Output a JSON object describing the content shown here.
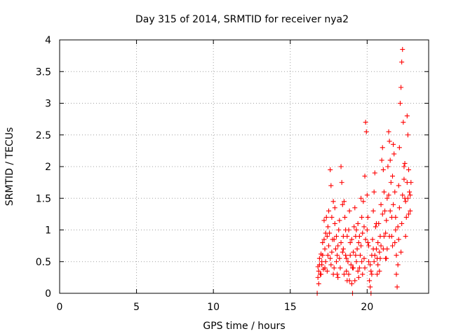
{
  "chart_data": {
    "type": "scatter",
    "title": "Day 315 of 2014, SRMTID for receiver nya2",
    "xlabel": "GPS time / hours",
    "ylabel": "SRMTID / TECUs",
    "xlim": [
      0,
      24
    ],
    "ylim": [
      0,
      4
    ],
    "xticks": [
      0,
      5,
      10,
      15,
      20
    ],
    "yticks": [
      0,
      0.5,
      1,
      1.5,
      2,
      2.5,
      3,
      3.5,
      4
    ],
    "ytick_labels": [
      "0",
      "0.5",
      "1",
      "1.5",
      "2",
      "2.5",
      "3",
      "3.5",
      "4"
    ],
    "grid": true,
    "marker": "+",
    "color": "#ff0000",
    "series": [
      {
        "name": "SRMTID",
        "points": [
          [
            16.75,
            0.0
          ],
          [
            16.8,
            0.42
          ],
          [
            16.85,
            0.35
          ],
          [
            16.9,
            0.55
          ],
          [
            16.95,
            0.3
          ],
          [
            17.0,
            0.62
          ],
          [
            17.05,
            0.45
          ],
          [
            17.1,
            0.8
          ],
          [
            17.15,
            0.38
          ],
          [
            17.2,
            1.15
          ],
          [
            17.25,
            0.7
          ],
          [
            17.3,
            0.5
          ],
          [
            17.35,
            1.2
          ],
          [
            17.4,
            0.9
          ],
          [
            17.45,
            0.6
          ],
          [
            17.5,
            1.3
          ],
          [
            17.55,
            0.95
          ],
          [
            17.6,
            1.95
          ],
          [
            17.65,
            1.7
          ],
          [
            17.7,
            1.2
          ],
          [
            17.75,
            0.85
          ],
          [
            17.8,
            1.45
          ],
          [
            17.85,
            0.4
          ],
          [
            17.9,
            1.1
          ],
          [
            17.95,
            0.7
          ],
          [
            18.0,
            0.5
          ],
          [
            18.05,
            0.3
          ],
          [
            18.1,
            0.75
          ],
          [
            18.15,
            1.0
          ],
          [
            18.2,
            0.55
          ],
          [
            18.3,
            2.0
          ],
          [
            18.35,
            1.75
          ],
          [
            18.4,
            1.4
          ],
          [
            18.45,
            0.9
          ],
          [
            18.5,
            1.45
          ],
          [
            18.55,
            1.2
          ],
          [
            18.6,
            0.6
          ],
          [
            18.65,
            0.35
          ],
          [
            18.7,
            0.2
          ],
          [
            18.75,
            0.5
          ],
          [
            18.8,
            1.0
          ],
          [
            18.85,
            1.3
          ],
          [
            18.9,
            0.8
          ],
          [
            18.95,
            0.45
          ],
          [
            19.0,
            0.15
          ],
          [
            19.05,
            0.0
          ],
          [
            19.1,
            0.65
          ],
          [
            19.15,
            1.05
          ],
          [
            19.2,
            1.35
          ],
          [
            19.25,
            0.9
          ],
          [
            19.3,
            0.5
          ],
          [
            19.35,
            0.7
          ],
          [
            19.4,
            1.1
          ],
          [
            19.45,
            0.8
          ],
          [
            19.5,
            0.4
          ],
          [
            19.55,
            0.6
          ],
          [
            19.6,
            1.5
          ],
          [
            19.65,
            1.2
          ],
          [
            19.7,
            0.95
          ],
          [
            19.75,
            1.45
          ],
          [
            19.8,
            1.05
          ],
          [
            19.85,
            1.85
          ],
          [
            19.9,
            2.7
          ],
          [
            19.95,
            2.55
          ],
          [
            20.0,
            1.55
          ],
          [
            20.05,
            1.2
          ],
          [
            20.1,
            0.5
          ],
          [
            20.15,
            0.2
          ],
          [
            20.2,
            0.1
          ],
          [
            20.25,
            0.0
          ],
          [
            20.3,
            0.6
          ],
          [
            20.35,
            0.85
          ],
          [
            20.4,
            1.3
          ],
          [
            20.45,
            1.6
          ],
          [
            20.5,
            1.9
          ],
          [
            20.55,
            1.05
          ],
          [
            20.6,
            0.7
          ],
          [
            20.65,
            0.55
          ],
          [
            20.7,
            0.8
          ],
          [
            20.75,
            1.1
          ],
          [
            20.8,
            0.65
          ],
          [
            20.85,
            0.9
          ],
          [
            20.9,
            1.4
          ],
          [
            20.95,
            2.1
          ],
          [
            21.0,
            2.3
          ],
          [
            21.05,
            1.95
          ],
          [
            21.1,
            1.6
          ],
          [
            21.15,
            1.3
          ],
          [
            21.2,
            0.95
          ],
          [
            21.25,
            1.15
          ],
          [
            21.3,
            1.5
          ],
          [
            21.35,
            2.0
          ],
          [
            21.4,
            2.55
          ],
          [
            21.45,
            2.4
          ],
          [
            21.5,
            2.1
          ],
          [
            21.55,
            1.75
          ],
          [
            21.6,
            1.2
          ],
          [
            21.65,
            1.85
          ],
          [
            21.7,
            2.35
          ],
          [
            21.75,
            2.2
          ],
          [
            21.8,
            1.6
          ],
          [
            21.85,
            1.0
          ],
          [
            21.9,
            0.3
          ],
          [
            21.95,
            0.1
          ],
          [
            22.0,
            0.45
          ],
          [
            22.05,
            1.7
          ],
          [
            22.1,
            2.3
          ],
          [
            22.15,
            3.0
          ],
          [
            22.2,
            3.25
          ],
          [
            22.25,
            3.65
          ],
          [
            22.3,
            3.85
          ],
          [
            22.35,
            2.7
          ],
          [
            22.4,
            2.0
          ],
          [
            22.45,
            1.5
          ],
          [
            22.5,
            0.9
          ],
          [
            22.55,
            1.2
          ],
          [
            22.6,
            2.8
          ],
          [
            22.65,
            2.5
          ],
          [
            22.7,
            1.95
          ],
          [
            22.75,
            1.6
          ],
          [
            22.8,
            1.3
          ],
          [
            16.8,
            0.25
          ],
          [
            16.9,
            0.45
          ],
          [
            17.0,
            0.3
          ],
          [
            17.1,
            0.6
          ],
          [
            17.2,
            0.85
          ],
          [
            17.3,
            0.95
          ],
          [
            17.4,
            0.35
          ],
          [
            17.5,
            0.75
          ],
          [
            17.6,
            0.55
          ],
          [
            17.7,
            0.65
          ],
          [
            17.8,
            0.3
          ],
          [
            17.9,
            1.35
          ],
          [
            18.0,
            0.9
          ],
          [
            18.1,
            0.25
          ],
          [
            18.2,
            1.15
          ],
          [
            18.3,
            0.8
          ],
          [
            18.4,
            0.65
          ],
          [
            18.5,
            0.3
          ],
          [
            18.6,
            1.0
          ],
          [
            18.7,
            0.9
          ],
          [
            18.8,
            0.3
          ],
          [
            18.9,
            0.6
          ],
          [
            19.0,
            0.85
          ],
          [
            19.1,
            0.4
          ],
          [
            19.2,
            0.2
          ],
          [
            19.3,
            1.0
          ],
          [
            19.4,
            0.35
          ],
          [
            19.5,
            0.9
          ],
          [
            19.6,
            0.75
          ],
          [
            19.7,
            0.3
          ],
          [
            19.8,
            0.55
          ],
          [
            19.9,
            0.85
          ],
          [
            20.0,
            1.0
          ],
          [
            20.1,
            0.75
          ],
          [
            20.2,
            0.45
          ],
          [
            20.3,
            0.3
          ],
          [
            20.4,
            0.7
          ],
          [
            20.5,
            0.6
          ],
          [
            20.6,
            1.1
          ],
          [
            20.7,
            0.45
          ],
          [
            20.8,
            0.35
          ],
          [
            20.9,
            0.75
          ],
          [
            21.0,
            1.25
          ],
          [
            21.1,
            0.9
          ],
          [
            21.2,
            0.55
          ],
          [
            21.3,
            0.7
          ],
          [
            21.4,
            1.55
          ],
          [
            21.5,
            1.3
          ],
          [
            21.6,
            0.9
          ],
          [
            21.7,
            1.4
          ],
          [
            21.8,
            0.8
          ],
          [
            21.9,
            0.6
          ],
          [
            22.0,
            1.05
          ],
          [
            22.1,
            1.35
          ],
          [
            22.2,
            0.65
          ],
          [
            22.3,
            1.55
          ],
          [
            22.4,
            1.8
          ],
          [
            22.5,
            1.45
          ],
          [
            22.6,
            1.75
          ],
          [
            22.7,
            1.25
          ],
          [
            22.8,
            1.55
          ],
          [
            16.85,
            0.15
          ],
          [
            17.05,
            0.5
          ],
          [
            17.25,
            0.4
          ],
          [
            17.45,
            1.05
          ],
          [
            17.65,
            0.45
          ],
          [
            17.85,
            0.85
          ],
          [
            18.05,
            0.6
          ],
          [
            18.25,
            0.4
          ],
          [
            18.45,
            0.7
          ],
          [
            18.65,
            0.55
          ],
          [
            18.85,
            0.2
          ],
          [
            19.05,
            0.4
          ],
          [
            19.25,
            0.6
          ],
          [
            19.45,
            0.25
          ],
          [
            19.65,
            0.5
          ],
          [
            19.85,
            0.4
          ],
          [
            20.05,
            0.8
          ],
          [
            20.25,
            0.35
          ],
          [
            20.45,
            0.5
          ],
          [
            20.65,
            0.3
          ],
          [
            20.85,
            0.55
          ],
          [
            21.05,
            0.7
          ],
          [
            21.25,
            0.55
          ],
          [
            21.45,
            0.9
          ],
          [
            21.65,
            0.75
          ],
          [
            21.85,
            1.2
          ],
          [
            22.05,
            0.85
          ],
          [
            22.25,
            1.1
          ],
          [
            22.45,
            2.05
          ],
          [
            22.65,
            1.5
          ],
          [
            22.85,
            1.75
          ]
        ]
      }
    ]
  }
}
